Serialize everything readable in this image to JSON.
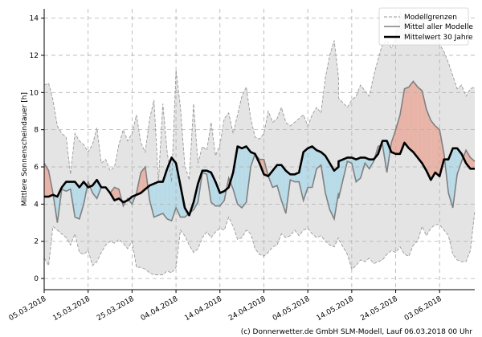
{
  "chart_data": {
    "type": "line",
    "title": "",
    "xlabel": "",
    "ylabel": "Mittlere Sonnenscheindauer [h]",
    "ylim": [
      -0.6,
      14.5
    ],
    "yticks": [
      "0",
      "2",
      "4",
      "6",
      "8",
      "10",
      "12",
      "14"
    ],
    "xticks": [
      "05.03.2018",
      "15.03.2018",
      "25.03.2018",
      "04.04.2018",
      "14.04.2018",
      "24.04.2018",
      "04.05.2018",
      "14.05.2018",
      "24.05.2018",
      "03.06.2018"
    ],
    "xtick_days": [
      0,
      10,
      20,
      30,
      40,
      50,
      60,
      70,
      80,
      90
    ],
    "grid": true,
    "legend": {
      "position": "top-right",
      "entries": [
        "Modellgrenzen",
        "Mittel aller Modelle",
        "Mittelwert 30 Jahre"
      ]
    },
    "credit": "(c) Donnerwetter.de GmbH SLM-Modell, Lauf 06.03.2018 00 Uhr",
    "colors": {
      "envelope_fill": "#e4e4e4",
      "envelope_line": "#9a9a9a",
      "ensemble_mean": "#808080",
      "climatology": "#000000",
      "above_fill": "#e8b4a8",
      "below_fill": "#b9dbe8"
    },
    "x_days": [
      0,
      1,
      2,
      3,
      4,
      5,
      6,
      7,
      8,
      9,
      10,
      11,
      12,
      13,
      14,
      15,
      16,
      17,
      18,
      19,
      20,
      21,
      22,
      23,
      24,
      25,
      26,
      27,
      28,
      29,
      30,
      31,
      32,
      33,
      34,
      35,
      36,
      37,
      38,
      39,
      40,
      41,
      42,
      43,
      44,
      45,
      46,
      47,
      48,
      49,
      50,
      51,
      52,
      53,
      54,
      55,
      56,
      57,
      58,
      59,
      60,
      61,
      62,
      63,
      64,
      65,
      66,
      67,
      67,
      69,
      70,
      71,
      72,
      73,
      74,
      75,
      76,
      77,
      78,
      79,
      80,
      81,
      82,
      83,
      84,
      85,
      86,
      87,
      88,
      89,
      90,
      91,
      92,
      93,
      94,
      95,
      96,
      97,
      98
    ],
    "series": [
      {
        "name": "Modellgrenzen (oben)",
        "values": [
          10.4,
          10.5,
          9.6,
          8.2,
          7.8,
          7.6,
          5.6,
          7.8,
          7.4,
          7.2,
          6.8,
          7.2,
          8.1,
          6.2,
          6.4,
          5.8,
          6.0,
          7.2,
          8.0,
          7.4,
          7.8,
          8.8,
          7.3,
          6.8,
          8.6,
          9.6,
          5.2,
          9.4,
          6.8,
          5.2,
          11.2,
          9.2,
          6.1,
          5.3,
          9.4,
          6.2,
          7.1,
          6.9,
          8.4,
          6.6,
          7.2,
          8.6,
          8.9,
          7.8,
          8.8,
          9.8,
          10.3,
          8.6,
          7.6,
          7.5,
          7.8,
          9.0,
          8.4,
          8.6,
          9.2,
          8.4,
          8.2,
          8.4,
          8.6,
          8.8,
          8.2,
          8.8,
          9.2,
          8.9,
          10.8,
          12.0,
          12.8,
          10.8,
          9.7,
          9.2,
          9.6,
          9.8,
          10.4,
          10.1,
          9.8,
          10.9,
          11.8,
          12.6,
          12.8,
          12.4,
          12.9,
          14.3,
          13.9,
          13.6,
          14.1,
          13.6,
          14.3,
          13.4,
          12.8,
          13.4,
          12.6,
          12.2,
          11.6,
          10.9,
          10.2,
          10.4,
          9.8,
          10.2,
          10.3
        ]
      },
      {
        "name": "Modellgrenzen (unten)",
        "values": [
          1.1,
          0.7,
          2.8,
          2.6,
          2.4,
          2.2,
          1.8,
          2.4,
          1.4,
          1.3,
          1.5,
          0.7,
          0.9,
          1.4,
          1.8,
          2.0,
          1.9,
          2.1,
          1.9,
          1.6,
          2.0,
          0.6,
          0.6,
          0.5,
          0.3,
          0.2,
          0.2,
          0.2,
          0.4,
          0.3,
          0.6,
          2.6,
          2.3,
          1.8,
          1.4,
          1.6,
          2.2,
          2.5,
          2.2,
          2.5,
          2.7,
          2.6,
          3.3,
          2.8,
          2.1,
          2.2,
          2.6,
          2.4,
          1.6,
          1.3,
          1.2,
          1.4,
          1.7,
          1.8,
          2.4,
          2.2,
          2.3,
          2.6,
          2.3,
          2.6,
          2.7,
          2.4,
          2.2,
          2.3,
          2.0,
          1.8,
          1.7,
          2.2,
          2.1,
          1.3,
          0.5,
          0.7,
          1.0,
          0.9,
          1.1,
          0.8,
          0.9,
          1.0,
          1.3,
          1.5,
          1.4,
          1.7,
          1.3,
          1.2,
          1.8,
          2.0,
          2.8,
          2.3,
          2.7,
          2.9,
          2.9,
          2.6,
          2.3,
          1.3,
          1.0,
          0.9,
          0.9,
          1.5,
          3.6
        ]
      },
      {
        "name": "Mittel aller Modelle",
        "values": [
          6.2,
          5.8,
          4.6,
          3.0,
          4.8,
          4.7,
          4.8,
          3.3,
          3.2,
          4.0,
          5.2,
          4.6,
          4.3,
          4.9,
          4.9,
          4.6,
          4.9,
          4.8,
          3.9,
          4.3,
          4.0,
          4.6,
          5.7,
          6.0,
          4.2,
          3.3,
          3.4,
          3.5,
          3.2,
          3.1,
          3.8,
          3.3,
          3.3,
          3.5,
          3.7,
          4.1,
          5.7,
          5.6,
          4.1,
          3.9,
          3.9,
          4.2,
          5.4,
          4.8,
          4.0,
          3.8,
          4.1,
          6.0,
          6.7,
          6.4,
          6.4,
          5.5,
          4.9,
          5.0,
          4.2,
          3.5,
          5.3,
          5.2,
          5.2,
          4.2,
          4.9,
          4.9,
          5.9,
          6.1,
          4.6,
          3.7,
          3.2,
          4.6,
          4.3,
          6.3,
          6.2,
          5.2,
          5.4,
          6.2,
          5.9,
          6.3,
          7.1,
          7.2,
          5.7,
          7.3,
          8.0,
          8.8,
          10.2,
          10.3,
          10.6,
          10.3,
          10.1,
          9.1,
          8.5,
          8.2,
          8.0,
          6.7,
          4.6,
          3.8,
          5.6,
          6.3,
          6.9,
          6.5,
          6.3
        ]
      },
      {
        "name": "Mittelwert 30 Jahre",
        "values": [
          4.4,
          4.4,
          4.5,
          4.4,
          4.9,
          5.2,
          5.2,
          5.2,
          4.9,
          5.2,
          4.9,
          5.0,
          5.3,
          4.9,
          4.9,
          4.6,
          4.2,
          4.3,
          4.1,
          4.2,
          4.4,
          4.5,
          4.6,
          4.8,
          5.0,
          5.1,
          5.2,
          5.2,
          5.9,
          6.5,
          6.2,
          5.0,
          3.8,
          3.4,
          4.1,
          5.1,
          5.8,
          5.8,
          5.7,
          5.2,
          4.6,
          4.7,
          4.9,
          5.7,
          7.1,
          7.0,
          7.1,
          6.8,
          6.7,
          6.2,
          5.6,
          5.5,
          5.8,
          6.1,
          6.1,
          5.8,
          5.6,
          5.6,
          5.7,
          6.8,
          7.0,
          7.1,
          6.9,
          6.8,
          6.6,
          6.2,
          5.8,
          6.0,
          6.3,
          6.5,
          6.5,
          6.4,
          6.5,
          6.5,
          6.4,
          6.4,
          6.7,
          7.4,
          7.4,
          6.8,
          6.7,
          6.7,
          7.3,
          7.0,
          6.8,
          6.5,
          6.2,
          5.8,
          5.3,
          5.7,
          5.5,
          6.4,
          6.4,
          7.0,
          7.0,
          6.7,
          6.2,
          5.9,
          5.9
        ]
      }
    ]
  }
}
